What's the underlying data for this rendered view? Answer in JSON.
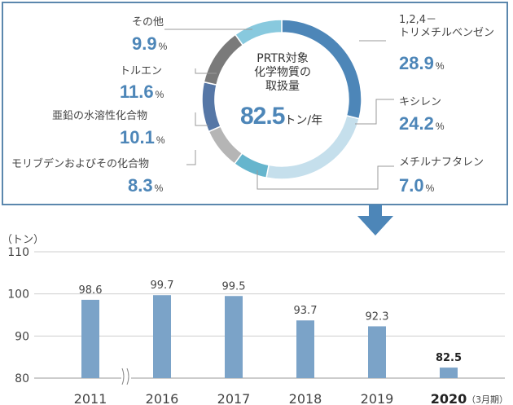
{
  "pie": {
    "type": "pie",
    "center_label": [
      "PRTR対象",
      "化学物質の",
      "取扱量"
    ],
    "total_value": "82.5",
    "total_unit": "トン/年",
    "unit_symbol": "%",
    "slices": [
      {
        "name_lines": [
          "1,2,4－",
          "トリメチルベンゼン"
        ],
        "value": 28.9,
        "value_text": "28.9",
        "color": "#4d86b8"
      },
      {
        "name_lines": [
          "キシレン"
        ],
        "value": 24.2,
        "value_text": "24.2",
        "color": "#c5dfec"
      },
      {
        "name_lines": [
          "メチルナフタレン"
        ],
        "value": 7.0,
        "value_text": "7.0",
        "color": "#66b5cd"
      },
      {
        "name_lines": [
          "モリブデンおよびその化合物"
        ],
        "value": 8.3,
        "value_text": "8.3",
        "color": "#b5b5b5"
      },
      {
        "name_lines": [
          "亜鉛の水溶性化合物"
        ],
        "value": 10.1,
        "value_text": "10.1",
        "color": "#5677a6"
      },
      {
        "name_lines": [
          "トルエン"
        ],
        "value": 11.6,
        "value_text": "11.6",
        "color": "#7a7a7a"
      },
      {
        "name_lines": [
          "その他"
        ],
        "value": 9.9,
        "value_text": "9.9",
        "color": "#88c9de"
      }
    ]
  },
  "chart_data": {
    "type": "bar",
    "ylabel": "（トン）",
    "categories": [
      "2011",
      "2016",
      "2017",
      "2018",
      "2019",
      "2020"
    ],
    "category_note": "（3月期）",
    "values": [
      98.6,
      99.7,
      99.5,
      93.7,
      92.3,
      82.5
    ],
    "value_labels": [
      "98.6",
      "99.7",
      "99.5",
      "93.7",
      "92.3",
      "82.5"
    ],
    "yticks": [
      "80",
      "90",
      "100",
      "110"
    ],
    "ylim": [
      80,
      110
    ],
    "bar_color": "#7ba3c8",
    "highlight_last": true,
    "axis_break_after": "2011",
    "grid": true
  }
}
